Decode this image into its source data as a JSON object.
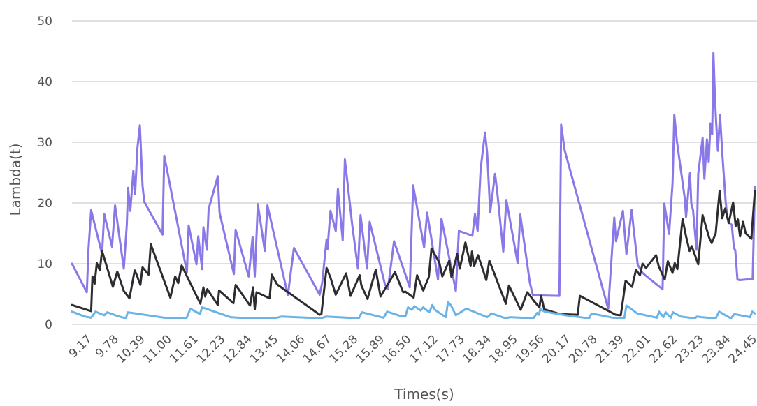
{
  "chart_data": {
    "type": "line",
    "title": "",
    "xlabel": "Times(s)",
    "ylabel": "Lambda(t)",
    "ylim": [
      0,
      50
    ],
    "xlim": [
      8.86,
      24.6
    ],
    "yticks": [
      "0",
      "10",
      "20",
      "30",
      "40",
      "50"
    ],
    "xticks": [
      "9.17",
      "9.78",
      "10.39",
      "11.00",
      "11.61",
      "12.23",
      "12.84",
      "13.45",
      "14.06",
      "14.67",
      "15.28",
      "15.89",
      "16.50",
      "17.12",
      "17.73",
      "18.34",
      "18.95",
      "19.56",
      "20.17",
      "20.78",
      "21.39",
      "22.01",
      "22.62",
      "23.23",
      "23.84",
      "24.45"
    ],
    "grid": true,
    "legend": "none",
    "series": [
      {
        "color": "#8878e8",
        "x": [
          8.86,
          9.2,
          9.24,
          9.3,
          9.55,
          9.6,
          9.78,
          9.85,
          10.05,
          10.12,
          10.15,
          10.2,
          10.27,
          10.31,
          10.36,
          10.42,
          10.48,
          10.52,
          10.94,
          10.98,
          11.5,
          11.54,
          11.72,
          11.76,
          11.85,
          11.88,
          11.96,
          12.0,
          12.21,
          12.25,
          12.58,
          12.62,
          12.92,
          13.01,
          13.06,
          13.13,
          13.29,
          13.35,
          13.75,
          13.82,
          13.96,
          14.55,
          14.61,
          14.71,
          14.73,
          14.8,
          14.92,
          14.97,
          15.08,
          15.13,
          15.3,
          15.43,
          15.49,
          15.64,
          15.7,
          16.05,
          16.12,
          16.26,
          16.62,
          16.7,
          16.95,
          17.02,
          17.27,
          17.35,
          17.68,
          17.75,
          18.06,
          18.12,
          18.18,
          18.25,
          18.35,
          18.4,
          18.47,
          18.58,
          18.63,
          18.77,
          18.84,
          19.1,
          19.16,
          19.38,
          19.45,
          20.06,
          20.1,
          20.18,
          21.18,
          21.32,
          21.36,
          21.52,
          21.6,
          21.72,
          21.77,
          21.86,
          21.97,
          22.03,
          22.43,
          22.47,
          22.58,
          22.66,
          22.7,
          22.76,
          22.94,
          22.97,
          23.06,
          23.09,
          23.13,
          23.21,
          23.25,
          23.35,
          23.39,
          23.45,
          23.49,
          23.53,
          23.57,
          23.6,
          23.63,
          23.66,
          23.7,
          23.75,
          23.8,
          23.88,
          23.92,
          23.97,
          24.02,
          24.07,
          24.1,
          24.15,
          24.2,
          24.5,
          24.55
        ],
        "values": [
          10,
          5.3,
          12.6,
          18.8,
          11.6,
          18.2,
          12.8,
          19.6,
          9.2,
          16.4,
          22.5,
          18.7,
          25.3,
          21.5,
          28.8,
          32.8,
          22.9,
          20.2,
          14.8,
          27.8,
          8.6,
          16.3,
          9.9,
          14.5,
          9.1,
          16,
          12.3,
          19,
          24.4,
          18.4,
          8.3,
          15.6,
          7.9,
          14.4,
          7.9,
          19.8,
          12.1,
          19.6,
          7,
          4.8,
          12.6,
          4.9,
          6.9,
          14,
          12.4,
          18.7,
          15.4,
          22.3,
          13.9,
          27.2,
          16.3,
          9.2,
          18,
          9.2,
          16.9,
          6.6,
          5.9,
          13.7,
          6.1,
          22.9,
          12.7,
          18.4,
          7.4,
          17.4,
          5.5,
          15.4,
          14.6,
          18.2,
          15.4,
          25.6,
          31.6,
          28.2,
          18.5,
          24.8,
          21.9,
          12,
          20.5,
          10.1,
          18.1,
          6.9,
          4.8,
          4.7,
          32.9,
          28.7,
          2.6,
          17.6,
          13.7,
          18.7,
          11.6,
          18.9,
          15.4,
          9.8,
          8.5,
          8.1,
          5.8,
          19.9,
          14.9,
          23.3,
          34.5,
          30.2,
          20.8,
          17.7,
          24.9,
          19.9,
          18.8,
          12.3,
          24.8,
          30.7,
          24,
          30.5,
          26.8,
          33.1,
          31.3,
          44.7,
          38.1,
          33.4,
          28.6,
          34.5,
          28.4,
          20.2,
          17.5,
          16.7,
          16.4,
          12.6,
          12.2,
          7.4,
          7.3,
          7.5,
          22.7
        ]
      },
      {
        "color": "#2d2d31",
        "x": [
          8.86,
          9.3,
          9.33,
          9.38,
          9.43,
          9.5,
          9.55,
          9.8,
          9.9,
          10.05,
          10.18,
          10.3,
          10.34,
          10.43,
          10.48,
          10.62,
          10.67,
          11.12,
          11.23,
          11.3,
          11.38,
          11.81,
          11.88,
          11.92,
          11.97,
          12.21,
          12.24,
          12.57,
          12.62,
          12.95,
          13.02,
          13.06,
          13.1,
          13.4,
          13.45,
          13.57,
          14.55,
          14.59,
          14.71,
          14.8,
          14.92,
          15.16,
          15.26,
          15.47,
          15.51,
          15.65,
          15.84,
          15.95,
          16.28,
          16.47,
          16.52,
          16.71,
          16.79,
          16.93,
          17.06,
          17.12,
          17.3,
          17.37,
          17.53,
          17.58,
          17.71,
          17.77,
          17.9,
          18.02,
          18.05,
          18.1,
          18.19,
          18.38,
          18.45,
          18.83,
          18.9,
          19.17,
          19.32,
          19.42,
          19.48,
          19.6,
          19.64,
          19.71,
          20.07,
          20.48,
          20.53,
          21.35,
          21.47,
          21.53,
          21.58,
          21.73,
          21.82,
          21.91,
          21.97,
          22.05,
          22.28,
          22.34,
          22.48,
          22.55,
          22.66,
          22.71,
          22.77,
          22.83,
          22.89,
          22.97,
          23.05,
          23.1,
          23.25,
          23.35,
          23.5,
          23.56,
          23.65,
          23.74,
          23.8,
          23.87,
          23.95,
          24.05,
          24.11,
          24.16,
          24.21,
          24.28,
          24.34,
          24.47,
          24.55
        ],
        "values": [
          3.2,
          2.2,
          7.9,
          6.7,
          10.1,
          8.9,
          12.1,
          6.2,
          8.7,
          5.5,
          4.3,
          8.9,
          8.3,
          6.5,
          9.4,
          8.2,
          13.2,
          4.4,
          7.9,
          6.8,
          9.7,
          3.4,
          6.1,
          4.6,
          5.8,
          3.2,
          5.6,
          3.5,
          6.5,
          3.1,
          6.1,
          2.5,
          5.3,
          4.3,
          8.2,
          6.6,
          1.6,
          1.7,
          9.3,
          7.7,
          4.9,
          8.4,
          4.7,
          8.1,
          6.4,
          4.2,
          9,
          4.6,
          8.6,
          5.3,
          5.4,
          4.4,
          8.1,
          5.6,
          7.8,
          12.5,
          10.2,
          7.9,
          10.5,
          7.8,
          11.6,
          9.2,
          13.5,
          9.6,
          12,
          9.6,
          11.4,
          7.3,
          10.5,
          3.4,
          6.4,
          2.4,
          5.3,
          4.4,
          3.8,
          2.8,
          4.7,
          2.5,
          1.7,
          1.6,
          4.7,
          1.6,
          1.5,
          4.5,
          7.2,
          6.2,
          9,
          8.1,
          10,
          9.3,
          11.4,
          9.6,
          7.4,
          10.4,
          8.5,
          10.1,
          9.1,
          13.3,
          17.4,
          14.5,
          12.1,
          12.9,
          9.9,
          18,
          14.3,
          13.4,
          15,
          22,
          17.5,
          19.1,
          16.7,
          20.1,
          16.2,
          17.3,
          14.5,
          16.9,
          15,
          14.1,
          22
        ]
      },
      {
        "color": "#69b3e6",
        "x": [
          8.86,
          9.15,
          9.3,
          9.4,
          9.6,
          9.67,
          9.9,
          10.1,
          10.14,
          10.8,
          10.98,
          11.3,
          11.49,
          11.58,
          11.8,
          11.85,
          12.5,
          12.9,
          13.5,
          13.68,
          14.58,
          14.7,
          15.45,
          15.52,
          16.02,
          16.1,
          16.4,
          16.52,
          16.58,
          16.67,
          16.73,
          16.87,
          16.93,
          17.07,
          17.14,
          17.2,
          17.45,
          17.5,
          17.57,
          17.68,
          17.92,
          18.4,
          18.5,
          18.83,
          18.92,
          19.46,
          19.55,
          19.59,
          19.62,
          19.72,
          20.2,
          20.74,
          20.8,
          21.36,
          21.55,
          21.6,
          21.85,
          22.3,
          22.35,
          22.45,
          22.5,
          22.62,
          22.67,
          22.85,
          23.17,
          23.22,
          23.32,
          23.65,
          23.73,
          24,
          24.08,
          24.44,
          24.49,
          24.55
        ],
        "values": [
          2.1,
          1.3,
          1.1,
          2.1,
          1.5,
          2,
          1.4,
          1,
          2,
          1.3,
          1.1,
          1,
          1,
          2.6,
          1.7,
          2.8,
          1.2,
          1,
          1,
          1.3,
          1,
          1.3,
          1,
          2,
          1.1,
          2.1,
          1.4,
          1.3,
          2.8,
          2.4,
          3,
          2.3,
          2.8,
          2,
          3.2,
          2.4,
          1.2,
          3.7,
          3.1,
          1.5,
          2.6,
          1.2,
          1.8,
          1,
          1.2,
          1,
          1.9,
          1.6,
          2.5,
          2.1,
          1.5,
          1,
          1.8,
          1,
          1,
          3.1,
          1.8,
          1.1,
          2.1,
          1.2,
          2,
          1.1,
          2,
          1.3,
          1,
          1.3,
          1.2,
          1,
          2.1,
          1,
          1.7,
          1.2,
          2.1,
          1.8
        ]
      }
    ]
  }
}
